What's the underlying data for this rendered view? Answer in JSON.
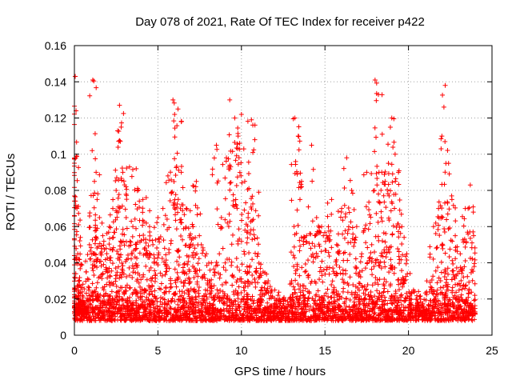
{
  "chart_data": {
    "type": "scatter",
    "title": "Day 078 of 2021, Rate Of TEC Index for receiver p422",
    "xlabel": "GPS time / hours",
    "ylabel": "ROTI / TECUs",
    "xlim": [
      0,
      25
    ],
    "ylim": [
      0,
      0.16
    ],
    "x_ticks": [
      0,
      5,
      10,
      15,
      20,
      25
    ],
    "y_ticks": [
      0,
      0.02,
      0.04,
      0.06,
      0.08,
      0.1,
      0.12,
      0.14,
      0.16
    ],
    "x_tick_labels": [
      "0",
      "5",
      "10",
      "15",
      "20",
      "25"
    ],
    "y_tick_labels": [
      "0",
      "0.02",
      "0.04",
      "0.06",
      "0.08",
      "0.1",
      "0.12",
      "0.14",
      "0.16"
    ],
    "grid": true,
    "marker": "+",
    "color": "#ff0000",
    "series": [
      {
        "name": "ROTI",
        "x": [
          0.05,
          0.1,
          0.12,
          0.15,
          0.2,
          0.3,
          0.35,
          0.4,
          0.5,
          0.7,
          0.9,
          1.1,
          1.2,
          1.3,
          1.5,
          1.7,
          1.9,
          2.1,
          2.3,
          2.5,
          2.7,
          2.8,
          2.9,
          3.1,
          3.3,
          3.5,
          3.7,
          3.9,
          4.1,
          4.3,
          4.5,
          4.7,
          5.0,
          5.3,
          5.6,
          5.9,
          6.0,
          6.2,
          6.4,
          6.5,
          6.7,
          6.9,
          7.1,
          7.3,
          7.6,
          7.9,
          8.2,
          8.5,
          8.8,
          9.1,
          9.3,
          9.6,
          9.8,
          10.0,
          10.2,
          10.4,
          10.6,
          10.8,
          11.0,
          11.3,
          11.6,
          12.0,
          12.5,
          13.0,
          13.2,
          13.4,
          13.6,
          13.9,
          14.2,
          14.5,
          14.8,
          15.1,
          15.4,
          15.7,
          16.0,
          16.3,
          16.6,
          16.9,
          17.2,
          17.5,
          17.8,
          18.0,
          18.2,
          18.4,
          18.6,
          18.8,
          19.0,
          19.2,
          19.4,
          19.6,
          19.9,
          20.3,
          20.7,
          21.1,
          21.5,
          21.8,
          22.0,
          22.2,
          22.4,
          22.6,
          22.8,
          23.1,
          23.4,
          23.7,
          23.9
        ],
        "y": [
          0.143,
          0.124,
          0.099,
          0.07,
          0.045,
          0.03,
          0.02,
          0.012,
          0.015,
          0.035,
          0.05,
          0.141,
          0.085,
          0.09,
          0.065,
          0.055,
          0.048,
          0.06,
          0.07,
          0.08,
          0.127,
          0.115,
          0.09,
          0.065,
          0.093,
          0.06,
          0.092,
          0.055,
          0.075,
          0.076,
          0.06,
          0.05,
          0.065,
          0.07,
          0.088,
          0.13,
          0.122,
          0.125,
          0.09,
          0.072,
          0.07,
          0.055,
          0.06,
          0.085,
          0.05,
          0.045,
          0.04,
          0.105,
          0.065,
          0.098,
          0.13,
          0.12,
          0.11,
          0.122,
          0.085,
          0.065,
          0.119,
          0.108,
          0.045,
          0.035,
          0.03,
          0.025,
          0.02,
          0.03,
          0.12,
          0.11,
          0.085,
          0.055,
          0.105,
          0.065,
          0.06,
          0.055,
          0.075,
          0.05,
          0.07,
          0.098,
          0.08,
          0.06,
          0.045,
          0.09,
          0.05,
          0.141,
          0.133,
          0.09,
          0.085,
          0.095,
          0.12,
          0.1,
          0.09,
          0.06,
          0.045,
          0.025,
          0.02,
          0.03,
          0.06,
          0.07,
          0.11,
          0.138,
          0.095,
          0.075,
          0.055,
          0.045,
          0.07,
          0.083,
          0.055
        ]
      }
    ],
    "baseline_band": [
      0.004,
      0.022
    ]
  }
}
